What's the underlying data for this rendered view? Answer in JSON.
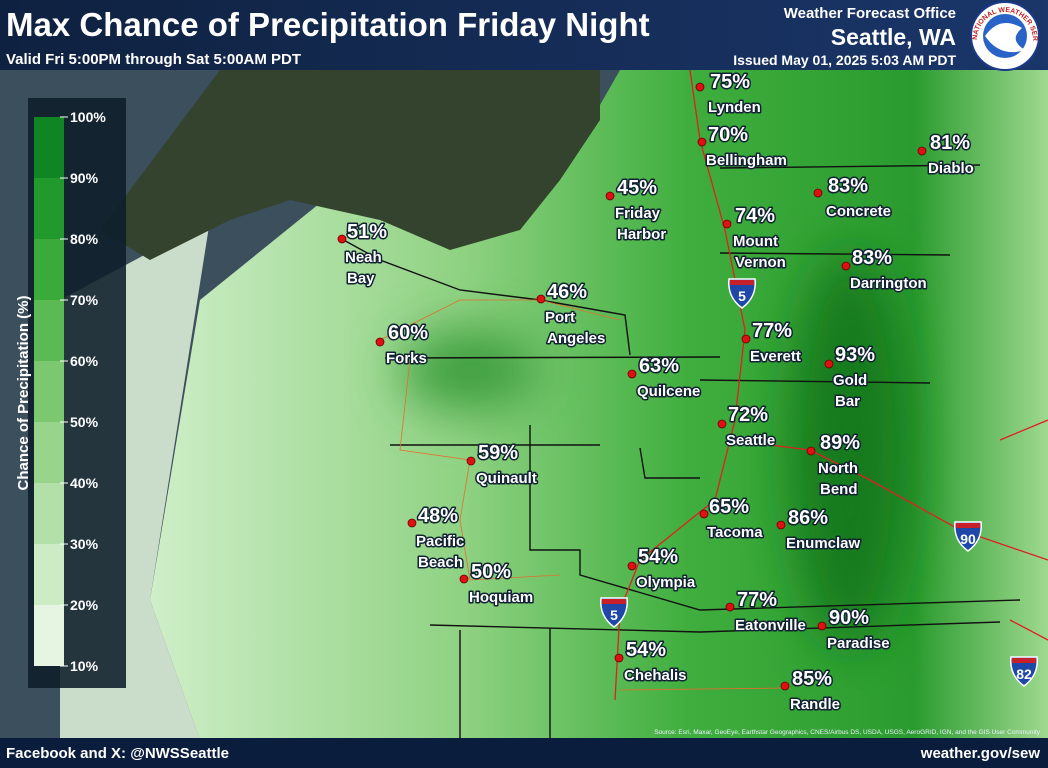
{
  "header": {
    "title": "Max Chance of Precipitation Friday Night",
    "subtitle": "Valid Fri 5:00PM through Sat 5:00AM PDT",
    "office": "Weather Forecast Office",
    "location": "Seattle, WA",
    "issued": "Issued May 01, 2025 5:03 AM PDT",
    "logo_text": "NATIONAL WEATHER SERVICE"
  },
  "legend": {
    "title": "Chance of Precipitation (%)",
    "ticks": [
      "100%",
      "90%",
      "80%",
      "70%",
      "60%",
      "50%",
      "40%",
      "30%",
      "20%",
      "10%"
    ],
    "colors": [
      "#0f8523",
      "#22992c",
      "#3aab3a",
      "#5cba55",
      "#7cc870",
      "#98d48c",
      "#b3e0a9",
      "#cdebc5",
      "#e6f5e1"
    ]
  },
  "cities": [
    {
      "name_lines": [
        "Lynden"
      ],
      "chance": "75%"
    },
    {
      "name_lines": [
        "Bellingham"
      ],
      "chance": "70%"
    },
    {
      "name_lines": [
        "Friday",
        "Harbor"
      ],
      "chance": "45%"
    },
    {
      "name_lines": [
        "Mount",
        "Vernon"
      ],
      "chance": "74%"
    },
    {
      "name_lines": [
        "Concrete"
      ],
      "chance": "83%"
    },
    {
      "name_lines": [
        "Diablo"
      ],
      "chance": "81%"
    },
    {
      "name_lines": [
        "Darrington"
      ],
      "chance": "83%"
    },
    {
      "name_lines": [
        "Neah",
        "Bay"
      ],
      "chance": "51%"
    },
    {
      "name_lines": [
        "Port",
        "Angeles"
      ],
      "chance": "46%"
    },
    {
      "name_lines": [
        "Forks"
      ],
      "chance": "60%"
    },
    {
      "name_lines": [
        "Quilcene"
      ],
      "chance": "63%"
    },
    {
      "name_lines": [
        "Everett"
      ],
      "chance": "77%"
    },
    {
      "name_lines": [
        "Gold",
        "Bar"
      ],
      "chance": "93%"
    },
    {
      "name_lines": [
        "Seattle"
      ],
      "chance": "72%"
    },
    {
      "name_lines": [
        "North",
        "Bend"
      ],
      "chance": "89%"
    },
    {
      "name_lines": [
        "Quinault"
      ],
      "chance": "59%"
    },
    {
      "name_lines": [
        "Tacoma"
      ],
      "chance": "65%"
    },
    {
      "name_lines": [
        "Enumclaw"
      ],
      "chance": "86%"
    },
    {
      "name_lines": [
        "Pacific",
        "Beach"
      ],
      "chance": "48%"
    },
    {
      "name_lines": [
        "Hoquiam"
      ],
      "chance": "50%"
    },
    {
      "name_lines": [
        "Olympia"
      ],
      "chance": "54%"
    },
    {
      "name_lines": [
        "Eatonville"
      ],
      "chance": "77%"
    },
    {
      "name_lines": [
        "Paradise"
      ],
      "chance": "90%"
    },
    {
      "name_lines": [
        "Chehalis"
      ],
      "chance": "54%"
    },
    {
      "name_lines": [
        "Randle"
      ],
      "chance": "85%"
    }
  ],
  "shields": [
    "5",
    "5",
    "90",
    "82"
  ],
  "source": "Source: Esri, Maxar, GeoEye, Earthstar Geographics, CNES/Airbus DS, USDA, USGS, AeroGRID, IGN, and the GIS User Community",
  "footer": {
    "social": "Facebook and X: @NWSSeattle",
    "website": "weather.gov/sew"
  }
}
